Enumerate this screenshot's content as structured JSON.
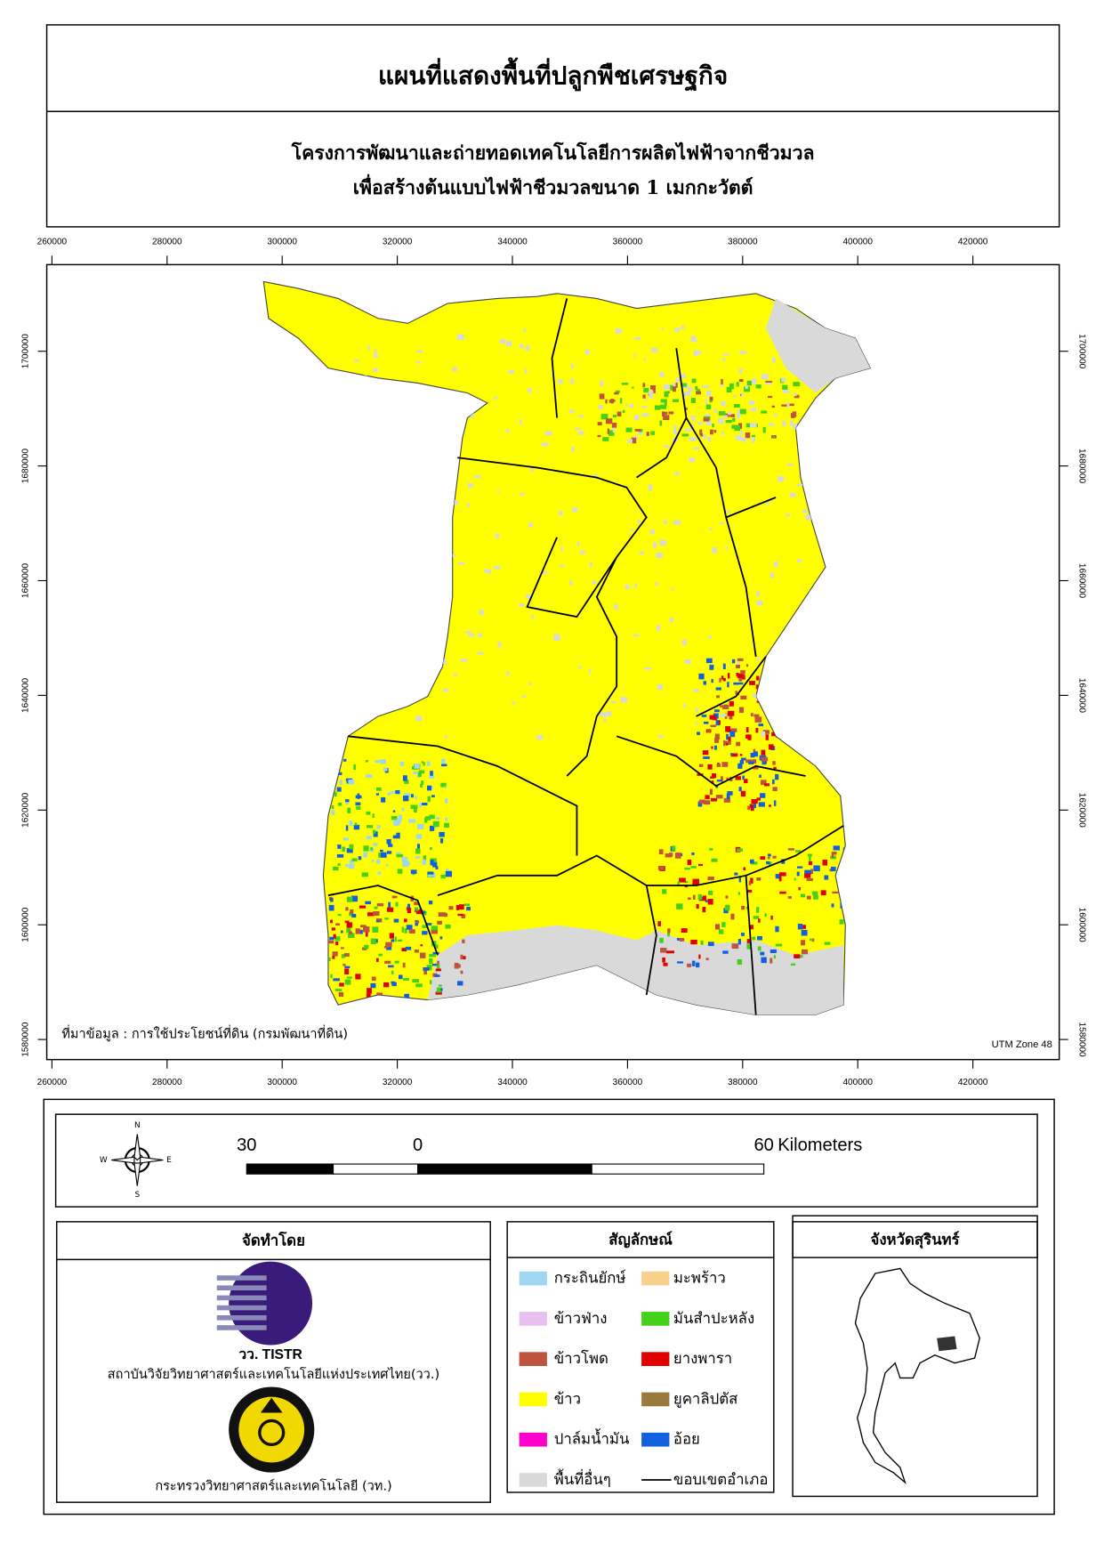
{
  "header": {
    "title": "แผนที่แสดงพื้นที่ปลูกพืชเศรษฐกิจ",
    "subtitle": [
      "โครงการพัฒนาและถ่ายทอดเทคโนโลยีการผลิตไฟฟ้าจากชีวมวล",
      "เพื่อสร้างต้นแบบไฟฟ้าชีวมวลขนาด 1 เมกกะวัตต์"
    ]
  },
  "map": {
    "xlim": [
      259100,
      435000
    ],
    "ylim": [
      1576500,
      1715100
    ],
    "xticks": [
      260000,
      280000,
      300000,
      320000,
      340000,
      360000,
      380000,
      400000,
      420000
    ],
    "yticks": [
      1580000,
      1600000,
      1620000,
      1640000,
      1660000,
      1680000,
      1700000
    ],
    "source": "ที่มาข้อมูล : การใช้ประโยชน์ที่ดิน  (กรมพัฒนาที่ดิน)",
    "projection": "UTM Zone 48"
  },
  "compass": {
    "n": "N",
    "w": "W",
    "e": "E",
    "s": "S"
  },
  "scale_bar": {
    "left": "30",
    "zero": "0",
    "right": "60",
    "unit": "Kilometers"
  },
  "producer": {
    "title": "จัดทำโดย",
    "logo1_text": "วว. TISTR",
    "org1": "สถาบันวิจัยวิทยาศาสตร์และเทคโนโลยีแห่งประเทศไทย(วว.)",
    "org2": "กระทรวงวิทยาศาสตร์และเทคโนโลยี (วท.)"
  },
  "legend": {
    "title": "สัญลักษณ์",
    "items": [
      {
        "label": "กระถินยักษ์",
        "color": "#9fd6f0"
      },
      {
        "label": "มะพร้าว",
        "color": "#f8d08c"
      },
      {
        "label": "ข้าวฟ่าง",
        "color": "#e8c0f0"
      },
      {
        "label": "มันสำปะหลัง",
        "color": "#44d11a"
      },
      {
        "label": "ข้าวโพด",
        "color": "#c0533c"
      },
      {
        "label": "ยางพารา",
        "color": "#e00000"
      },
      {
        "label": "ข้าว",
        "color": "#ffff00"
      },
      {
        "label": "ยูคาลิปตัส",
        "color": "#9a7a3a"
      },
      {
        "label": "ปาล์มน้ำมัน",
        "color": "#ff00cc"
      },
      {
        "label": "อ้อย",
        "color": "#1060e0"
      },
      {
        "label": "พื้นที่อื่นๆ",
        "color": "#d9d9d9"
      },
      {
        "label": "ขอบเขตอำเภอ",
        "color": "#000000"
      }
    ]
  },
  "inset": {
    "title": "จังหวัดสุรินทร์"
  }
}
